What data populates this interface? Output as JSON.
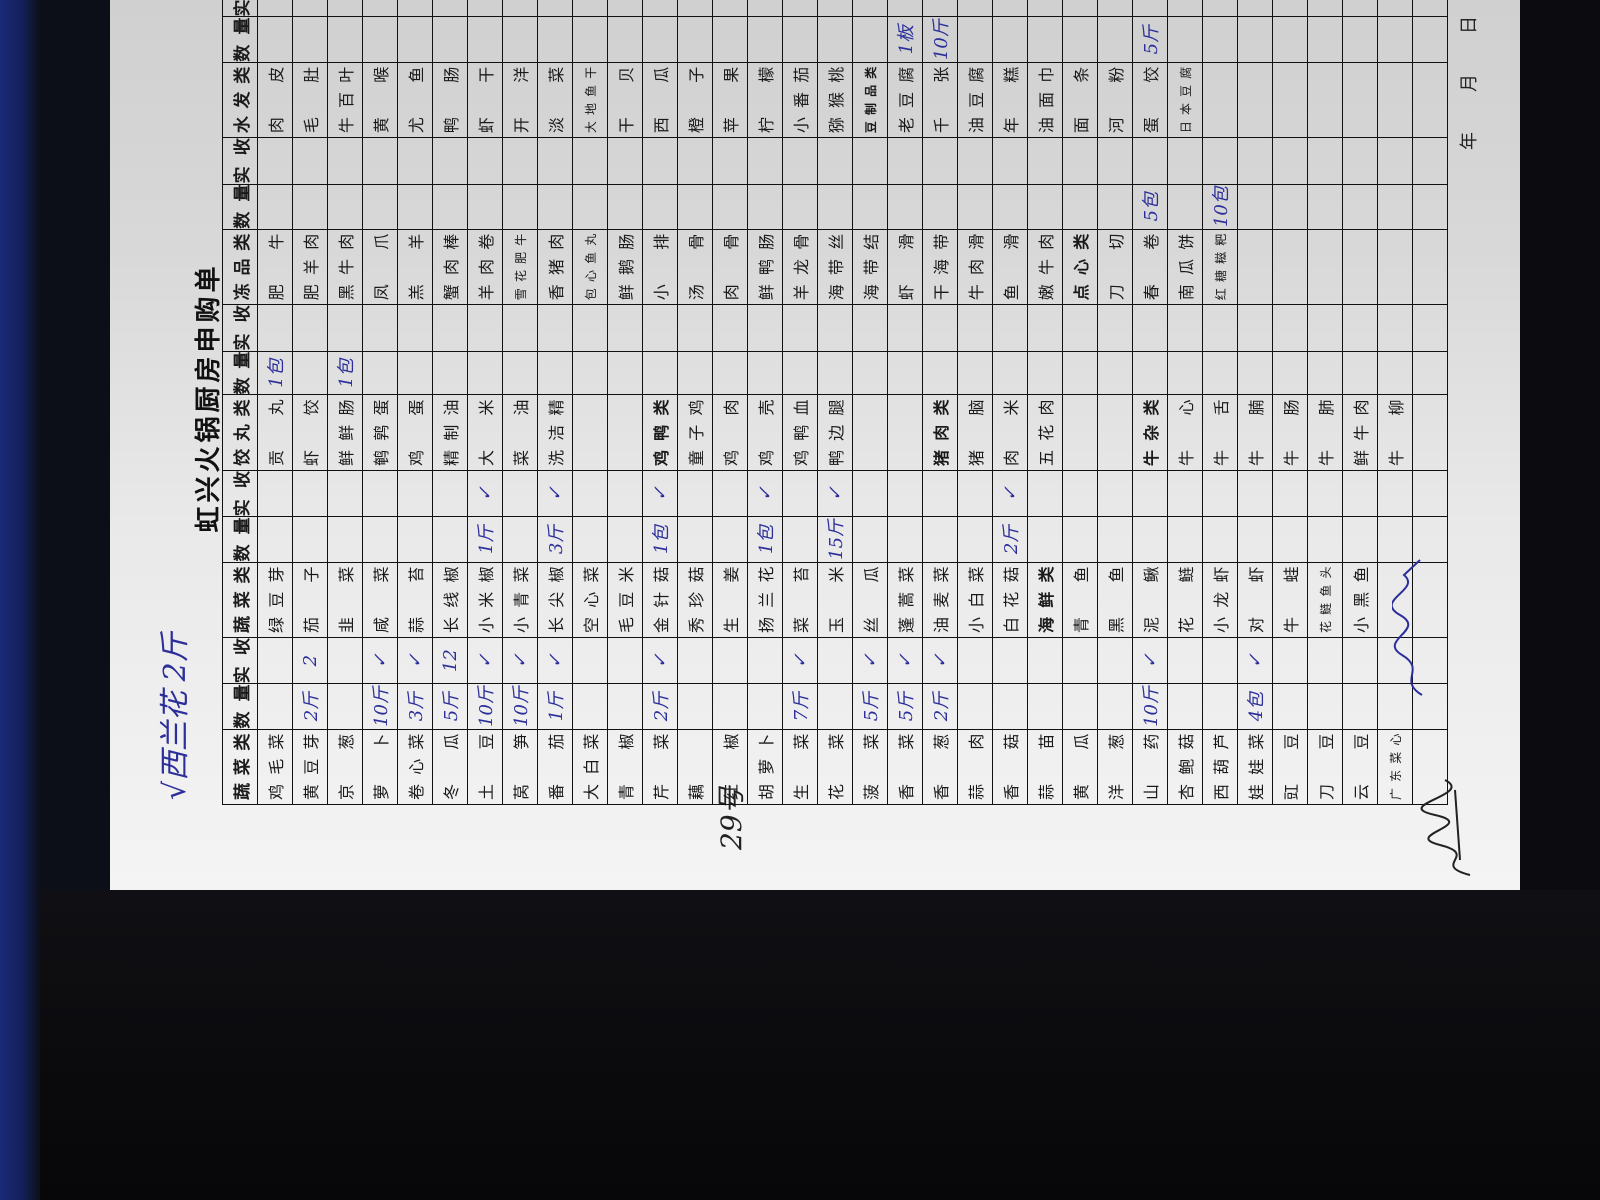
{
  "title": "虹兴火锅厨房申购单",
  "handwritten_note_top": "√西兰花 2斤",
  "handwritten_note_date": "29号",
  "date_labels": [
    "年",
    "月",
    "日"
  ],
  "colors": {
    "ink_blue": "#2c2f9a",
    "paper": "#eeeeee",
    "background": "#0b0b10"
  },
  "table": {
    "headers": [
      "蔬菜类",
      "数量",
      "实收",
      "蔬菜类",
      "数量",
      "实收",
      "饺丸类",
      "数量",
      "实收",
      "冻品类",
      "数量",
      "实收",
      "水发类",
      "数量",
      "实收"
    ],
    "rows": [
      [
        "鸡毛菜",
        "",
        "",
        "绿豆芽",
        "",
        "",
        "贡丸",
        "1包",
        "",
        "肥牛",
        "",
        "",
        "肉皮",
        "",
        ""
      ],
      [
        "黄豆芽",
        "2斤",
        "2",
        "茄子",
        "",
        "",
        "虾饺",
        "",
        "",
        "肥羊肉",
        "",
        "",
        "毛肚",
        "",
        ""
      ],
      [
        "京葱",
        "",
        "",
        "韭菜",
        "",
        "",
        "鲜鲜肠",
        "1包",
        "",
        "黑牛肉",
        "",
        "",
        "牛百叶",
        "",
        ""
      ],
      [
        "萝卜",
        "10斤",
        "✓",
        "咸菜",
        "",
        "",
        "鹌鹑蛋",
        "",
        "",
        "凤爪",
        "",
        "",
        "黄喉",
        "",
        ""
      ],
      [
        "卷心菜",
        "3斤",
        "✓",
        "蒜苔",
        "",
        "",
        "鸡蛋",
        "",
        "",
        "羔羊",
        "",
        "",
        "尤鱼",
        "",
        ""
      ],
      [
        "冬瓜",
        "5斤",
        "12",
        "长线椒",
        "",
        "",
        "精制油",
        "",
        "",
        "蟹肉棒",
        "",
        "",
        "鸭肠",
        "",
        ""
      ],
      [
        "土豆",
        "10斤",
        "✓",
        "小米椒",
        "1斤",
        "✓",
        "大米",
        "",
        "",
        "羊肉卷",
        "",
        "",
        "虾干",
        "",
        ""
      ],
      [
        "莴笋",
        "10斤",
        "✓",
        "小青菜",
        "",
        "",
        "菜油",
        "",
        "",
        "雪花肥牛",
        "",
        "",
        "开洋",
        "",
        ""
      ],
      [
        "番茄",
        "1斤",
        "✓",
        "长尖椒",
        "3斤",
        "✓",
        "洗洁精",
        "",
        "",
        "香猪肉",
        "",
        "",
        "淡菜",
        "",
        ""
      ],
      [
        "大白菜",
        "",
        "",
        "空心菜",
        "",
        "",
        "",
        "",
        "",
        "包心鱼丸",
        "",
        "",
        "大地鱼干",
        "",
        ""
      ],
      [
        "青椒",
        "",
        "",
        "毛豆米",
        "",
        "",
        "",
        "",
        "",
        "鲜鹅肠",
        "",
        "",
        "干贝",
        "",
        ""
      ],
      [
        "芹菜",
        "2斤",
        "✓",
        "金针菇",
        "1包",
        "✓",
        "鸡鸭类",
        "",
        "",
        "小排",
        "",
        "",
        "西瓜",
        "",
        ""
      ],
      [
        "藕",
        "",
        "",
        "秀珍菇",
        "",
        "",
        "童子鸡",
        "",
        "",
        "汤骨",
        "",
        "",
        "橙子",
        "",
        ""
      ],
      [
        "红椒",
        "",
        "",
        "生姜",
        "",
        "",
        "鸡肉",
        "",
        "",
        "肉骨",
        "",
        "",
        "苹果",
        "",
        ""
      ],
      [
        "胡萝卜",
        "",
        "",
        "扬兰花",
        "1包",
        "✓",
        "鸡壳",
        "",
        "",
        "鲜鸭肠",
        "",
        "",
        "柠檬",
        "",
        ""
      ],
      [
        "生菜",
        "7斤",
        "✓",
        "菜苔",
        "",
        "",
        "鸡鸭血",
        "",
        "",
        "羊龙骨",
        "",
        "",
        "小番茄",
        "",
        ""
      ],
      [
        "花菜",
        "",
        "",
        "玉米",
        "15斤",
        "✓",
        "鸭边腿",
        "",
        "",
        "海带丝",
        "",
        "",
        "猕猴桃",
        "",
        ""
      ],
      [
        "菠菜",
        "5斤",
        "✓",
        "丝瓜",
        "",
        "",
        "",
        "",
        "",
        "海带结",
        "",
        "",
        "豆制品类",
        "",
        ""
      ],
      [
        "香菜",
        "5斤",
        "✓",
        "蓬蒿菜",
        "",
        "",
        "",
        "",
        "",
        "虾滑",
        "",
        "",
        "老豆腐",
        "1板",
        ""
      ],
      [
        "香葱",
        "2斤",
        "✓",
        "油麦菜",
        "",
        "",
        "猪肉类",
        "",
        "",
        "干海带",
        "",
        "",
        "千张",
        "10斤",
        ""
      ],
      [
        "蒜肉",
        "",
        "",
        "小白菜",
        "",
        "",
        "猪脑",
        "",
        "",
        "牛肉滑",
        "",
        "",
        "油豆腐",
        "",
        ""
      ],
      [
        "香菇",
        "",
        "",
        "白花菇",
        "2斤",
        "✓",
        "肉米",
        "",
        "",
        "鱼滑",
        "",
        "",
        "年糕",
        "",
        ""
      ],
      [
        "蒜苗",
        "",
        "",
        "海鲜类",
        "",
        "",
        "五花肉",
        "",
        "",
        "嫩牛肉",
        "",
        "",
        "油面巾",
        "",
        ""
      ],
      [
        "黄瓜",
        "",
        "",
        "青鱼",
        "",
        "",
        "",
        "",
        "",
        "点心类",
        "",
        "",
        "面条",
        "",
        ""
      ],
      [
        "洋葱",
        "",
        "",
        "黑鱼",
        "",
        "",
        "",
        "",
        "",
        "刀切",
        "",
        "",
        "河粉",
        "",
        ""
      ],
      [
        "山药",
        "10斤",
        "✓",
        "泥鳅",
        "",
        "",
        "牛杂类",
        "",
        "",
        "春卷",
        "5包",
        "",
        "蛋饺",
        "5斤",
        ""
      ],
      [
        "杏鲍菇",
        "",
        "",
        "花鲢",
        "",
        "",
        "牛心",
        "",
        "",
        "南瓜饼",
        "",
        "",
        "日本豆腐",
        "",
        ""
      ],
      [
        "西葫芦",
        "",
        "",
        "小龙虾",
        "",
        "",
        "牛舌",
        "",
        "",
        "红糖糍粑",
        "10包",
        "",
        "",
        "",
        ""
      ],
      [
        "娃娃菜",
        "4包",
        "✓",
        "对虾",
        "",
        "",
        "牛腩",
        "",
        "",
        "",
        "",
        "",
        "",
        "",
        ""
      ],
      [
        "豇豆",
        "",
        "",
        "牛蛙",
        "",
        "",
        "牛肠",
        "",
        "",
        "",
        "",
        "",
        "",
        "",
        ""
      ],
      [
        "刀豆",
        "",
        "",
        "花鲢鱼头",
        "",
        "",
        "牛肺",
        "",
        "",
        "",
        "",
        "",
        "",
        "",
        ""
      ],
      [
        "云豆",
        "",
        "",
        "小黑鱼",
        "",
        "",
        "鲜牛肉",
        "",
        "",
        "",
        "",
        "",
        "",
        "",
        ""
      ],
      [
        "广东菜心",
        "",
        "",
        "",
        "",
        "",
        "牛柳",
        "",
        "",
        "",
        "",
        "",
        "",
        "",
        ""
      ],
      [
        "",
        "",
        "",
        "",
        "",
        "",
        "",
        "",
        "",
        "",
        "",
        "",
        "",
        "",
        ""
      ]
    ],
    "category_labels": [
      "鸡鸭类",
      "猪肉类",
      "牛杂类",
      "海鲜类",
      "豆制品类",
      "点心类"
    ]
  }
}
